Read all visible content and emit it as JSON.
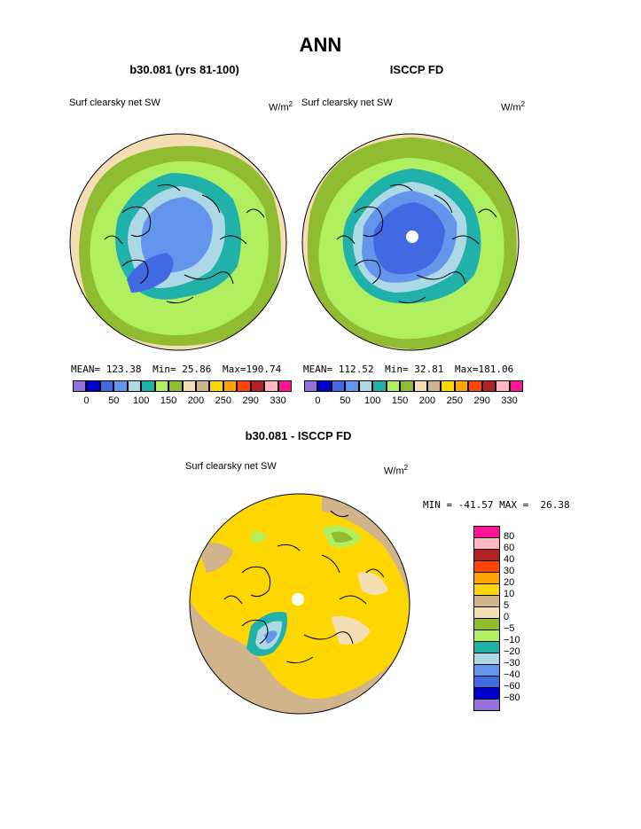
{
  "main_title": "ANN",
  "left_panel": {
    "title": "b30.081 (yrs 81-100)",
    "variable": "Surf clearsky net SW",
    "units": "W/m",
    "units_sup": "2",
    "mean_label": "MEAN=",
    "mean": "123.38",
    "min_label": "Min=",
    "min": "25.86",
    "max_label": "Max=",
    "max": "190.74"
  },
  "right_panel": {
    "title": "ISCCP FD",
    "variable": "Surf clearsky net SW",
    "units": "W/m",
    "units_sup": "2",
    "mean_label": "MEAN=",
    "mean": "112.52",
    "min_label": "Min=",
    "min": "32.81",
    "max_label": "Max=",
    "max": "181.06"
  },
  "top_colorbar": {
    "colors": [
      "#9370db",
      "#0000cd",
      "#4169e1",
      "#6495ed",
      "#add8e6",
      "#20b2aa",
      "#b0f060",
      "#8fbc30",
      "#f5deb3",
      "#d2b48c",
      "#ffd700",
      "#ffa500",
      "#ff4500",
      "#b22222",
      "#ffb6c1",
      "#ff1493"
    ],
    "tick_labels": [
      "0",
      "50",
      "100",
      "150",
      "200",
      "250",
      "290",
      "330"
    ]
  },
  "diff_panel": {
    "title": "b30.081 - ISCCP FD",
    "variable": "Surf clearsky net SW",
    "units": "W/m",
    "units_sup": "2",
    "minmax_text": "MIN = -41.57 MAX =  26.38"
  },
  "diff_colorbar": {
    "colors_top_to_bottom": [
      "#ff1493",
      "#ffb6c1",
      "#b22222",
      "#ff4500",
      "#ffa500",
      "#ffd700",
      "#d2b48c",
      "#f5deb3",
      "#8fbc30",
      "#b0f060",
      "#20b2aa",
      "#add8e6",
      "#6495ed",
      "#4169e1",
      "#0000cd",
      "#9370db"
    ],
    "tick_labels_top_to_bottom": [
      "80",
      "60",
      "40",
      "30",
      "20",
      "10",
      "5",
      "0",
      "−5",
      "−10",
      "−20",
      "−30",
      "−40",
      "−60",
      "−80"
    ]
  }
}
